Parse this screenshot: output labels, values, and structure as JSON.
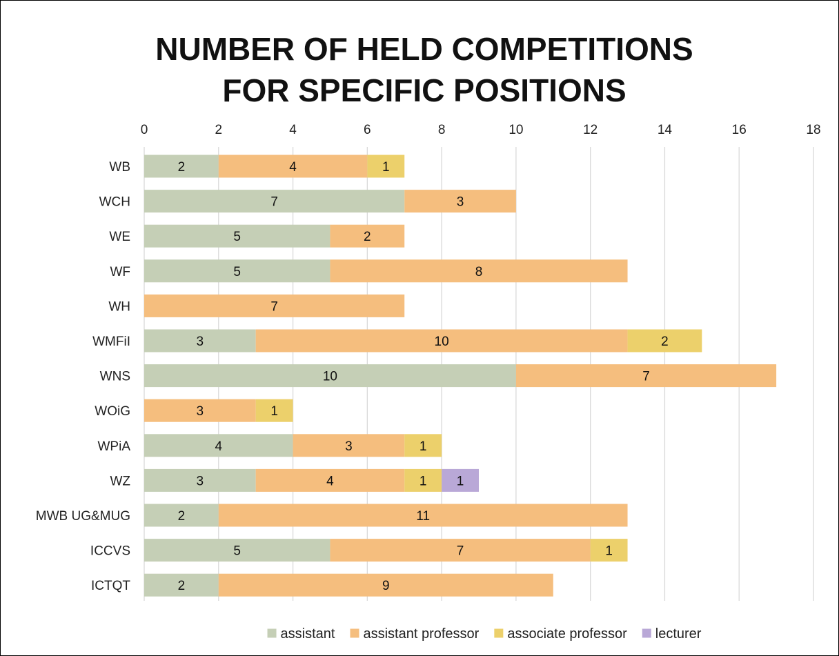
{
  "chart_data": {
    "type": "bar",
    "orientation": "horizontal",
    "stacked": true,
    "title": [
      "NUMBER OF HELD COMPETITIONS",
      "FOR SPECIFIC POSITIONS"
    ],
    "xlabel": "",
    "ylabel": "",
    "xlim": [
      0,
      18
    ],
    "x_ticks": [
      0,
      2,
      4,
      6,
      8,
      10,
      12,
      14,
      16,
      18
    ],
    "x_axis_position": "top",
    "grid": true,
    "legend_position": "bottom",
    "categories": [
      "WB",
      "WCH",
      "WE",
      "WF",
      "WH",
      "WMFiI",
      "WNS",
      "WOiG",
      "WPiA",
      "WZ",
      "MWB UG&MUG",
      "ICCVS",
      "ICTQT"
    ],
    "series": [
      {
        "name": "assistant",
        "color": "#c5cfb6",
        "values": [
          2,
          7,
          5,
          5,
          0,
          3,
          10,
          0,
          4,
          3,
          2,
          5,
          2
        ]
      },
      {
        "name": "assistant professor",
        "color": "#f5be7e",
        "values": [
          4,
          3,
          2,
          8,
          7,
          10,
          7,
          3,
          3,
          4,
          11,
          7,
          9
        ]
      },
      {
        "name": "associate professor",
        "color": "#ecd06b",
        "values": [
          1,
          0,
          0,
          0,
          0,
          2,
          0,
          1,
          1,
          1,
          0,
          1,
          0
        ]
      },
      {
        "name": "lecturer",
        "color": "#b9a8d7",
        "values": [
          0,
          0,
          0,
          0,
          0,
          0,
          0,
          0,
          0,
          1,
          0,
          0,
          0
        ]
      }
    ]
  }
}
